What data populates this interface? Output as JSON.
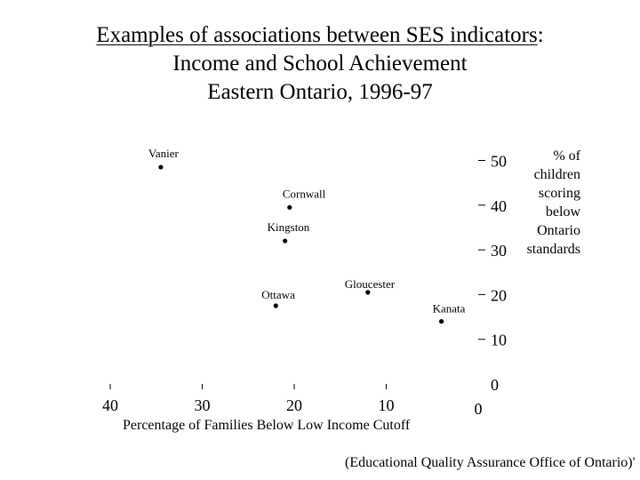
{
  "title": {
    "line1_main": "Examples of associations between SES indicators",
    "line1_colon": ":",
    "line2": "Income and School Achievement",
    "line3": "Eastern Ontario, 1996-97"
  },
  "source_note": "(Educational Quality Assurance Office of Ontario)'",
  "chart_data": {
    "type": "scatter",
    "title": "",
    "xlabel": "Percentage of Families Below Low Income Cutoff",
    "ylabel": "% of children scoring below Ontario standards",
    "ylabel_lines": [
      "% of",
      "children",
      "scoring",
      "below",
      "Ontario",
      "standards"
    ],
    "x_reversed": true,
    "xlim": [
      40,
      0
    ],
    "ylim": [
      0,
      50
    ],
    "x_ticks": [
      40,
      30,
      20,
      10,
      0
    ],
    "y_ticks": [
      0,
      10,
      20,
      30,
      40,
      50
    ],
    "grid": false,
    "points": [
      {
        "label": "Vanier",
        "x": 34.5,
        "y": 48.5
      },
      {
        "label": "Cornwall",
        "x": 20.5,
        "y": 39.5
      },
      {
        "label": "Kingston",
        "x": 21,
        "y": 32
      },
      {
        "label": "Gloucester",
        "x": 12,
        "y": 20.5
      },
      {
        "label": "Ottawa",
        "x": 22,
        "y": 17.5
      },
      {
        "label": "Kanata",
        "x": 4,
        "y": 14
      }
    ]
  }
}
